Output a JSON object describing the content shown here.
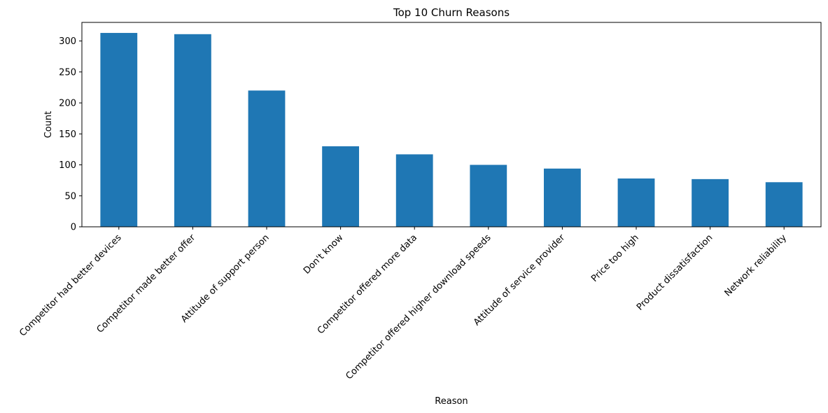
{
  "chart_data": {
    "type": "bar",
    "title": "Top 10 Churn Reasons",
    "xlabel": "Reason",
    "ylabel": "Count",
    "ylim": [
      0,
      330
    ],
    "yticks": [
      0,
      50,
      100,
      150,
      200,
      250,
      300
    ],
    "grid": false,
    "legend": "none",
    "bar_color": "#1f77b4",
    "categories": [
      "Competitor had better devices",
      "Competitor made better offer",
      "Attitude of support person",
      "Don't know",
      "Competitor offered more data",
      "Competitor offered higher download speeds",
      "Attitude of service provider",
      "Price too high",
      "Product dissatisfaction",
      "Network reliability"
    ],
    "values": [
      313,
      311,
      220,
      130,
      117,
      100,
      94,
      78,
      77,
      72
    ]
  }
}
